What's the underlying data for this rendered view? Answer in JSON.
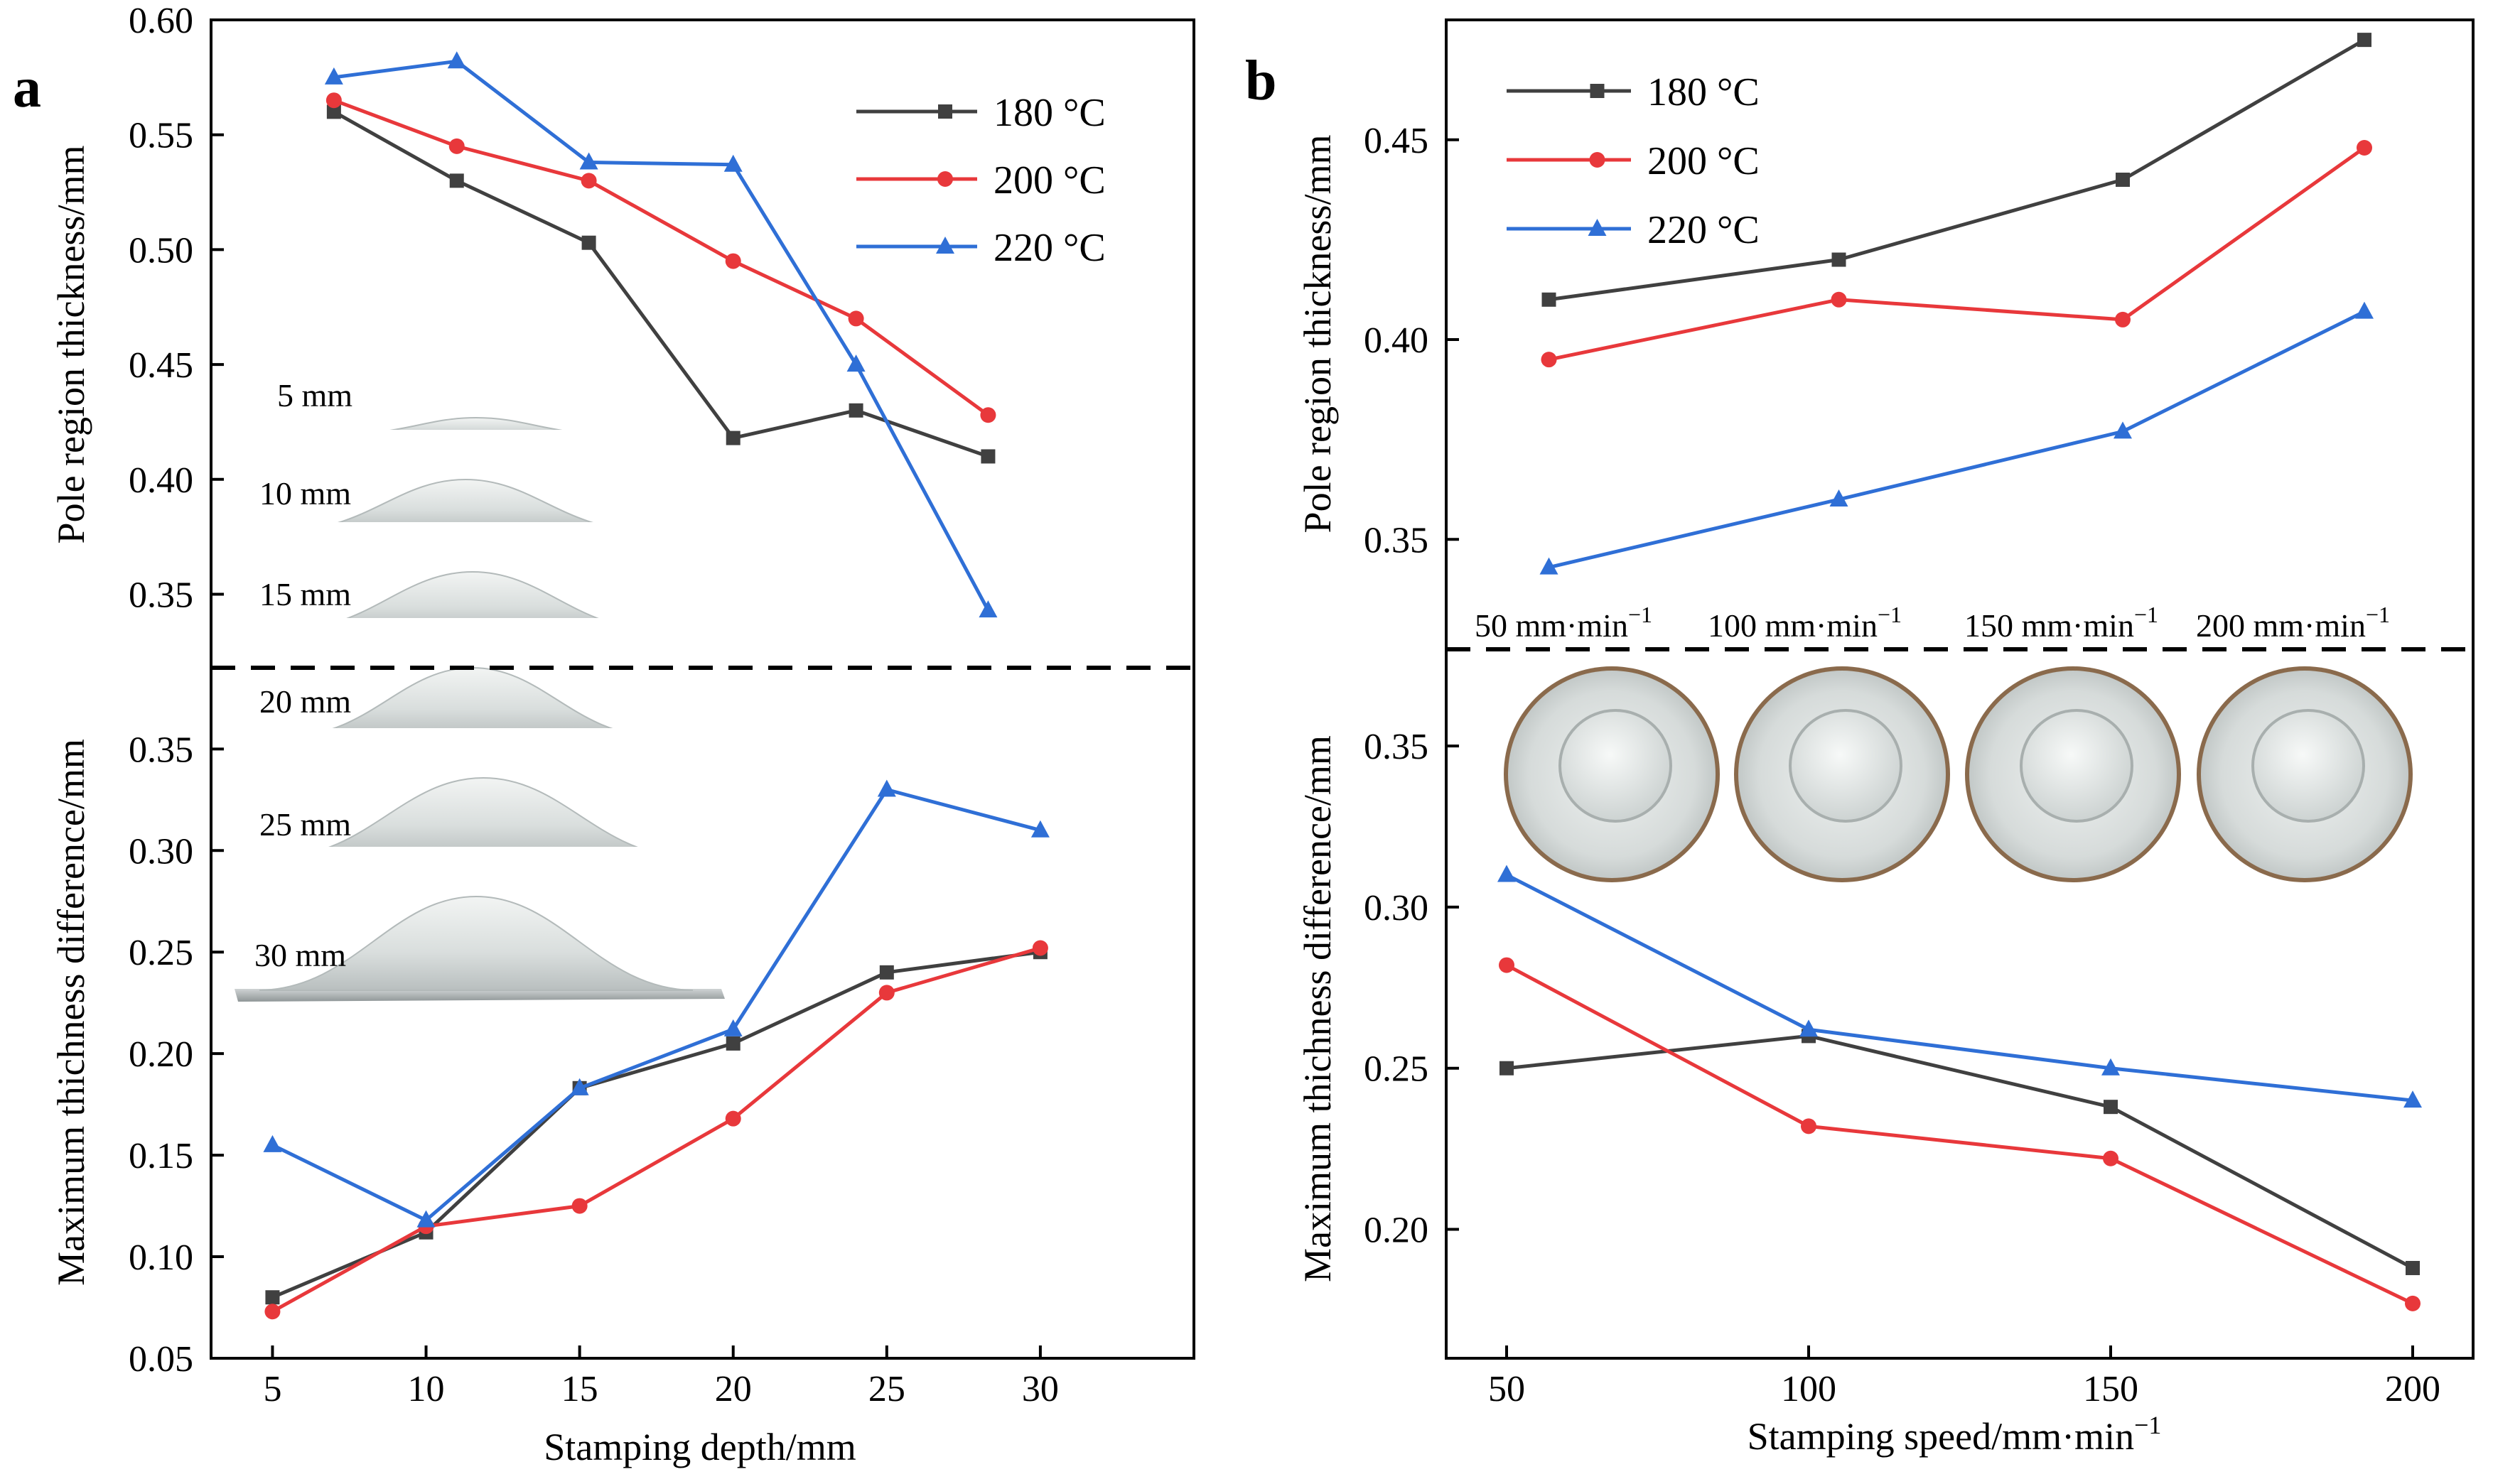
{
  "colors": {
    "c180": "#404040",
    "c200": "#e8383b",
    "c220": "#2f6fd6",
    "axis": "#000000"
  },
  "chart_data": [
    {
      "panel": "a",
      "type": "line",
      "xlabel": "Stamping depth/mm",
      "x_ticks": [
        "5",
        "10",
        "15",
        "20",
        "25",
        "30"
      ],
      "xlim": [
        3,
        35
      ],
      "legend": {
        "position": "top-right",
        "entries": [
          {
            "label": "180 °C",
            "marker": "square",
            "color": "#404040"
          },
          {
            "label": "200 °C",
            "marker": "circle",
            "color": "#e8383b"
          },
          {
            "label": "220 °C",
            "marker": "triangle",
            "color": "#2f6fd6"
          }
        ]
      },
      "subplots": [
        {
          "id": "a-top",
          "ylabel": "Pole region thickness/mm",
          "ylim": [
            0.318,
            0.6
          ],
          "y_ticks": [
            "0.35",
            "0.40",
            "0.45",
            "0.50",
            "0.55",
            "0.60"
          ],
          "series": [
            {
              "name": "180 °C",
              "marker": "square",
              "x": [
                7.0,
                11.0,
                15.3,
                20.0,
                24.0,
                28.3
              ],
              "y": [
                0.56,
                0.53,
                0.503,
                0.418,
                0.43,
                0.41
              ]
            },
            {
              "name": "200 °C",
              "marker": "circle",
              "x": [
                7.0,
                11.0,
                15.3,
                20.0,
                24.0,
                28.3
              ],
              "y": [
                0.565,
                0.545,
                0.53,
                0.495,
                0.47,
                0.428
              ]
            },
            {
              "name": "220 °C",
              "marker": "triangle",
              "x": [
                7.0,
                11.0,
                15.3,
                20.0,
                24.0,
                28.3
              ],
              "y": [
                0.575,
                0.582,
                0.538,
                0.537,
                0.45,
                0.343
              ]
            }
          ]
        },
        {
          "id": "a-bottom",
          "ylabel": "Maximum thichness difference/mm",
          "ylim": [
            0.05,
            0.39
          ],
          "y_ticks": [
            "0.05",
            "0.10",
            "0.15",
            "0.20",
            "0.25",
            "0.30",
            "0.35"
          ],
          "series": [
            {
              "name": "180 °C",
              "marker": "square",
              "x": [
                5,
                10,
                15,
                20,
                25,
                30
              ],
              "y": [
                0.08,
                0.112,
                0.183,
                0.205,
                0.24,
                0.25
              ]
            },
            {
              "name": "200 °C",
              "marker": "circle",
              "x": [
                5,
                10,
                15,
                20,
                25,
                30
              ],
              "y": [
                0.073,
                0.115,
                0.125,
                0.168,
                0.23,
                0.252
              ]
            },
            {
              "name": "220 °C",
              "marker": "triangle",
              "x": [
                5,
                10,
                15,
                20,
                25,
                30
              ],
              "y": [
                0.155,
                0.118,
                0.183,
                0.212,
                0.33,
                0.31
              ]
            }
          ]
        }
      ],
      "photo_labels": [
        "5 mm",
        "10 mm",
        "15 mm",
        "20 mm",
        "25 mm",
        "30 mm"
      ]
    },
    {
      "panel": "b",
      "type": "line",
      "xlabel": "Stamping speed/mm·min",
      "xlabel_superscript": "−1",
      "x_ticks": [
        "50",
        "100",
        "150",
        "200"
      ],
      "xlim": [
        40,
        210
      ],
      "legend": {
        "position": "top-left",
        "entries": [
          {
            "label": "180 °C",
            "marker": "square",
            "color": "#404040"
          },
          {
            "label": "200 °C",
            "marker": "circle",
            "color": "#e8383b"
          },
          {
            "label": "220 °C",
            "marker": "triangle",
            "color": "#2f6fd6"
          }
        ]
      },
      "subplots": [
        {
          "id": "b-top",
          "ylabel": "Pole region thickness/mm",
          "ylim": [
            0.3225,
            0.48
          ],
          "y_ticks": [
            "0.35",
            "0.40",
            "0.45"
          ],
          "series": [
            {
              "name": "180 °C",
              "marker": "square",
              "x": [
                57,
                105,
                152,
                192
              ],
              "y": [
                0.41,
                0.42,
                0.44,
                0.475
              ]
            },
            {
              "name": "200 °C",
              "marker": "circle",
              "x": [
                57,
                105,
                152,
                192
              ],
              "y": [
                0.395,
                0.41,
                0.405,
                0.448
              ]
            },
            {
              "name": "220 °C",
              "marker": "triangle",
              "x": [
                57,
                105,
                152,
                192
              ],
              "y": [
                0.343,
                0.36,
                0.377,
                0.407
              ]
            }
          ]
        },
        {
          "id": "b-bottom",
          "ylabel": "Maximum thichness difference/mm",
          "ylim": [
            0.16,
            0.38
          ],
          "y_ticks": [
            "0.20",
            "0.25",
            "0.30",
            "0.35"
          ],
          "series": [
            {
              "name": "180 °C",
              "marker": "square",
              "x": [
                50,
                100,
                150,
                200
              ],
              "y": [
                0.25,
                0.26,
                0.238,
                0.188
              ]
            },
            {
              "name": "200 °C",
              "marker": "circle",
              "x": [
                50,
                100,
                150,
                200
              ],
              "y": [
                0.282,
                0.232,
                0.222,
                0.177
              ]
            },
            {
              "name": "220 °C",
              "marker": "triangle",
              "x": [
                50,
                100,
                150,
                200
              ],
              "y": [
                0.31,
                0.262,
                0.25,
                0.24
              ]
            }
          ]
        }
      ],
      "photo_labels": [
        {
          "text": "50 mm·min",
          "sup": "−1"
        },
        {
          "text": "100 mm·min",
          "sup": "−1"
        },
        {
          "text": "150 mm·min",
          "sup": "−1"
        },
        {
          "text": "200 mm·min",
          "sup": "−1"
        }
      ]
    }
  ]
}
